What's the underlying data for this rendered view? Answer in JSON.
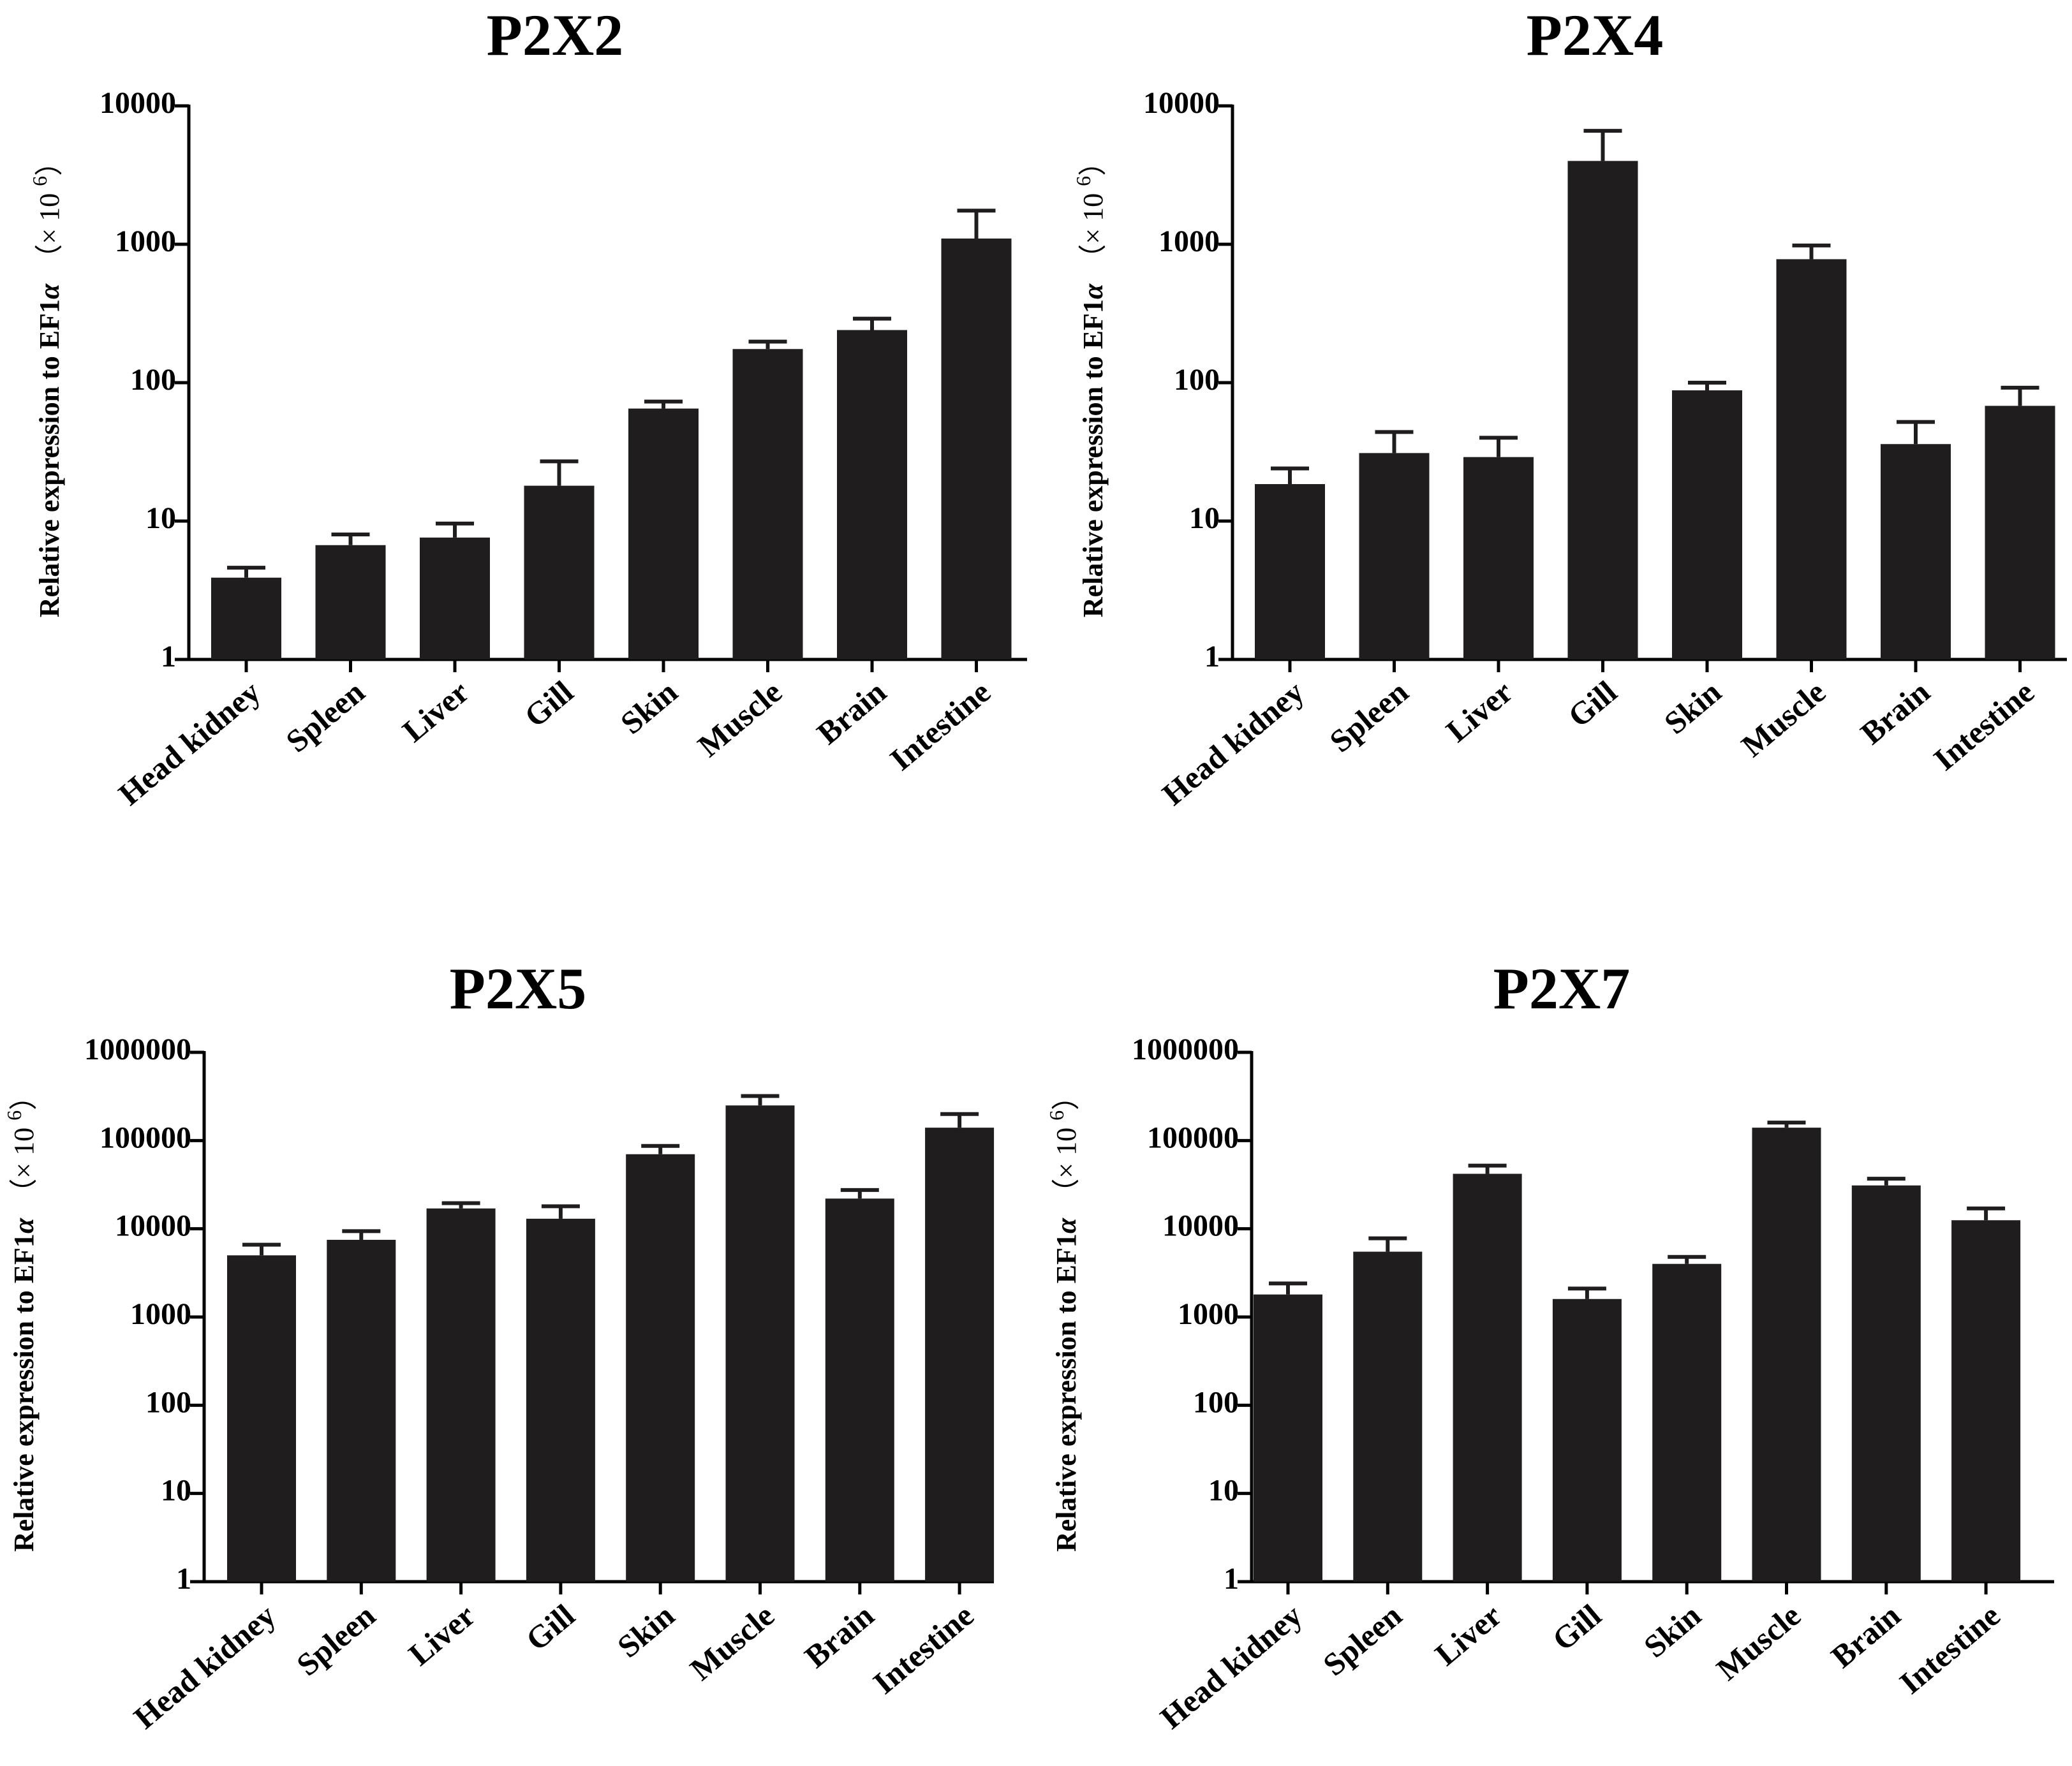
{
  "figure": {
    "bar_color": "#1f1d1e",
    "error_bar_color": "#1f1d1e",
    "axis_color": "#000000",
    "y_label_text": "Relative expression to EF1",
    "y_label_alpha": "α",
    "y_label_suffix": "（× 10",
    "y_label_exp": "6",
    "y_label_close": "）"
  },
  "chart_data": [
    {
      "type": "bar",
      "title": "P2X2",
      "yscale": "log",
      "ylim": [
        1,
        10000
      ],
      "yticks": [
        1,
        10,
        100,
        1000,
        10000
      ],
      "ytick_labels": [
        "1",
        "10",
        "100",
        "1000",
        "10000"
      ],
      "ylabel": "Relative expression to EF1α（× 10 6）",
      "categories": [
        "Head kidney",
        "Spleen",
        "Liver",
        "Gill",
        "Skin",
        "Muscle",
        "Brain",
        "Intestine"
      ],
      "values": [
        3.9,
        6.7,
        7.6,
        18,
        65,
        175,
        240,
        1100
      ],
      "error_upper": [
        4.6,
        8.0,
        9.6,
        27,
        73,
        198,
        290,
        1750
      ]
    },
    {
      "type": "bar",
      "title": "P2X4",
      "yscale": "log",
      "ylim": [
        1,
        10000
      ],
      "yticks": [
        1,
        10,
        100,
        1000,
        10000
      ],
      "ytick_labels": [
        "1",
        "10",
        "100",
        "1000",
        "10000"
      ],
      "ylabel": "Relative expression to EF1α（× 10 6）",
      "categories": [
        "Head kidney",
        "Spleen",
        "Liver",
        "Gill",
        "Skin",
        "Muscle",
        "Brain",
        "Intestine"
      ],
      "values": [
        18.5,
        31,
        29,
        4000,
        88,
        780,
        36,
        68
      ],
      "error_upper": [
        24,
        44,
        40,
        6600,
        100,
        980,
        52,
        92
      ]
    },
    {
      "type": "bar",
      "title": "P2X5",
      "yscale": "log",
      "ylim": [
        1,
        1000000
      ],
      "yticks": [
        1,
        10,
        100,
        1000,
        10000,
        100000,
        1000000
      ],
      "ytick_labels": [
        "1",
        "10",
        "100",
        "1000",
        "10000",
        "100000",
        "1000000"
      ],
      "ylabel": "Relative expression to EF1α（× 10 6）",
      "categories": [
        "Head kidney",
        "Spleen",
        "Liver",
        "Gill",
        "Skin",
        "Muscle",
        "Brain",
        "Intestine"
      ],
      "values": [
        5000,
        7500,
        17000,
        13000,
        70000,
        250000,
        22000,
        140000
      ],
      "error_upper": [
        6600,
        9400,
        19500,
        18000,
        87000,
        320000,
        27500,
        200000
      ]
    },
    {
      "type": "bar",
      "title": "P2X7",
      "yscale": "log",
      "ylim": [
        1,
        1000000
      ],
      "yticks": [
        1,
        10,
        100,
        1000,
        10000,
        100000,
        1000000
      ],
      "ytick_labels": [
        "1",
        "10",
        "100",
        "1000",
        "10000",
        "100000",
        "1000000"
      ],
      "ylabel": "Relative expression to EF1α（× 10 6）",
      "categories": [
        "Head kidney",
        "Spleen",
        "Liver",
        "Gill",
        "Skin",
        "Muscle",
        "Brain",
        "Intestine"
      ],
      "values": [
        1800,
        5500,
        42000,
        1600,
        4000,
        140000,
        31000,
        12500
      ],
      "error_upper": [
        2400,
        7800,
        52000,
        2100,
        4800,
        160000,
        37000,
        17000
      ]
    }
  ]
}
